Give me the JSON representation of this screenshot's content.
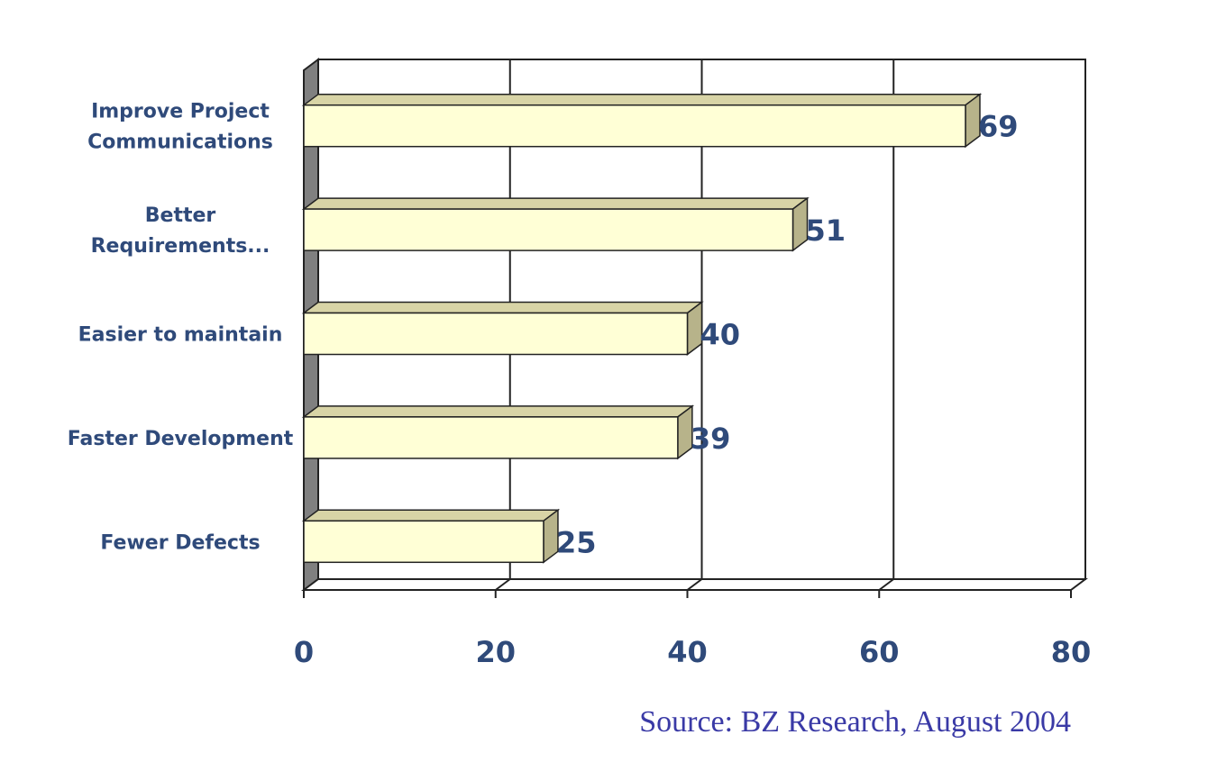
{
  "chart_data": {
    "type": "bar",
    "orientation": "horizontal",
    "style": "3d",
    "categories": [
      "Improve Project Communications",
      "Better Requirements...",
      "Easier to maintain",
      "Faster Development",
      "Fewer Defects"
    ],
    "category_lines": [
      [
        "Improve Project",
        "Communications"
      ],
      [
        "Better",
        "Requirements..."
      ],
      [
        "Easier to maintain"
      ],
      [
        "Faster Development"
      ],
      [
        "Fewer Defects"
      ]
    ],
    "values": [
      69,
      51,
      40,
      39,
      25
    ],
    "value_labels": [
      "69",
      "51",
      "40",
      "39",
      "25"
    ],
    "xlim": [
      0,
      80
    ],
    "xticks": [
      0,
      20,
      40,
      60,
      80
    ],
    "xtick_labels": [
      "0",
      "20",
      "40",
      "60",
      "80"
    ],
    "grid": true,
    "bar_color": "#ffffd6",
    "bar_top_color": "#d8d4a6",
    "bar_side_color": "#b7b38a",
    "text_color": "#2f4a7a",
    "source_text": "Source: BZ Research, August 2004",
    "source_color": "#3a3aa6"
  }
}
